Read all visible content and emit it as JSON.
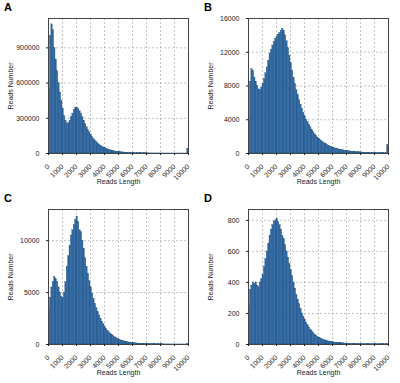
{
  "chart_data": [
    {
      "type": "histogram",
      "title": "A",
      "x_label": "Reads Length",
      "y_label": "Reads Number",
      "color": "#2d67a3",
      "grid": true,
      "bins": [
        0,
        100,
        200,
        300,
        400,
        500,
        600,
        700,
        800,
        900,
        1000,
        1100,
        1200,
        1300,
        1400,
        1500,
        1600,
        1700,
        1800,
        1900,
        2000,
        2100,
        2200,
        2300,
        2400,
        2500,
        2600,
        2700,
        2800,
        2900,
        3000,
        3100,
        3200,
        3300,
        3400,
        3500,
        3600,
        3700,
        3800,
        3900,
        4000,
        4100,
        4200,
        4300,
        4400,
        4500,
        4600,
        4700,
        4800,
        4900,
        5000,
        5100,
        5200,
        5300,
        5400,
        5500,
        5600,
        5700,
        5800,
        5900,
        6000,
        6100,
        6200,
        6300,
        6400,
        6500,
        6600,
        6700,
        6800,
        6900,
        7000,
        7100,
        7200,
        7300,
        7400,
        7500,
        7600,
        7700,
        7800,
        7900,
        8000,
        8100,
        8200,
        8300,
        8400,
        8500,
        8600,
        8700,
        8800,
        8900,
        9000,
        9100,
        9200,
        9300,
        9400,
        9500,
        9600,
        9700,
        9800,
        9900,
        10000
      ],
      "counts": [
        550000,
        1000000,
        1100000,
        1050000,
        900000,
        800000,
        700000,
        600000,
        520000,
        450000,
        380000,
        320000,
        280000,
        250000,
        260000,
        280000,
        310000,
        340000,
        370000,
        390000,
        390000,
        380000,
        360000,
        340000,
        310000,
        280000,
        250000,
        225000,
        200000,
        180000,
        160000,
        140000,
        125000,
        110000,
        97000,
        85000,
        75000,
        66000,
        58000,
        51000,
        45000,
        40000,
        35000,
        31000,
        27000,
        24000,
        21000,
        18000,
        16000,
        14000,
        12000,
        11000,
        10000,
        9000,
        8000,
        7000,
        6300,
        5600,
        5000,
        4500,
        4000,
        3600,
        3200,
        2900,
        2600,
        2300,
        2100,
        1900,
        1700,
        1500,
        1400,
        1200,
        1100,
        1000,
        900,
        800,
        700,
        650,
        600,
        550,
        500,
        450,
        400,
        380,
        350,
        320,
        300,
        280,
        260,
        240,
        220,
        200,
        190,
        180,
        170,
        160,
        150,
        140,
        130,
        40000
      ],
      "xlim": [
        0,
        10000
      ],
      "xticks": [
        0,
        1000,
        2000,
        3000,
        4000,
        5000,
        6000,
        7000,
        8000,
        9000,
        10000
      ],
      "ylim": [
        0,
        1150000
      ],
      "yticks": [
        0,
        300000,
        600000,
        900000
      ]
    },
    {
      "type": "histogram",
      "title": "B",
      "x_label": "Reads Length",
      "y_label": "Reads Number",
      "color": "#2d67a3",
      "grid": true,
      "bins": [
        0,
        100,
        200,
        300,
        400,
        500,
        600,
        700,
        800,
        900,
        1000,
        1100,
        1200,
        1300,
        1400,
        1500,
        1600,
        1700,
        1800,
        1900,
        2000,
        2100,
        2200,
        2300,
        2400,
        2500,
        2600,
        2700,
        2800,
        2900,
        3000,
        3100,
        3200,
        3300,
        3400,
        3500,
        3600,
        3700,
        3800,
        3900,
        4000,
        4100,
        4200,
        4300,
        4400,
        4500,
        4600,
        4700,
        4800,
        4900,
        5000,
        5100,
        5200,
        5300,
        5400,
        5500,
        5600,
        5700,
        5800,
        5900,
        6000,
        6100,
        6200,
        6300,
        6400,
        6500,
        6600,
        6700,
        6800,
        6900,
        7000,
        7100,
        7200,
        7300,
        7400,
        7500,
        7600,
        7700,
        7800,
        7900,
        8000,
        8100,
        8200,
        8300,
        8400,
        8500,
        8600,
        8700,
        8800,
        8900,
        9000,
        9100,
        9200,
        9300,
        9400,
        9500,
        9600,
        9700,
        9800,
        9900,
        10000
      ],
      "counts": [
        4000,
        8500,
        10000,
        9800,
        9000,
        8500,
        8000,
        7600,
        7500,
        7800,
        8200,
        8800,
        9500,
        10200,
        11000,
        11800,
        12300,
        12800,
        13200,
        13600,
        13800,
        14100,
        14300,
        14500,
        14800,
        14500,
        14000,
        13300,
        12500,
        11600,
        10700,
        9800,
        9000,
        8200,
        7500,
        6900,
        6300,
        5800,
        5300,
        4800,
        4400,
        4000,
        3700,
        3400,
        3100,
        2800,
        2550,
        2300,
        2100,
        1900,
        1750,
        1600,
        1450,
        1320,
        1200,
        1100,
        1000,
        920,
        840,
        770,
        700,
        640,
        590,
        540,
        490,
        450,
        410,
        380,
        350,
        320,
        290,
        270,
        250,
        230,
        210,
        190,
        175,
        160,
        150,
        140,
        130,
        120,
        110,
        100,
        95,
        90,
        85,
        80,
        75,
        70,
        65,
        60,
        55,
        50,
        48,
        45,
        42,
        40,
        38,
        1000
      ],
      "xlim": [
        0,
        10000
      ],
      "xticks": [
        0,
        1000,
        2000,
        3000,
        4000,
        5000,
        6000,
        7000,
        8000,
        9000,
        10000
      ],
      "ylim": [
        0,
        16000
      ],
      "yticks": [
        0,
        4000,
        8000,
        12000,
        16000
      ]
    },
    {
      "type": "histogram",
      "title": "C",
      "x_label": "Reads Length",
      "y_label": "Reads Number",
      "color": "#2d67a3",
      "grid": true,
      "bins": [
        0,
        100,
        200,
        300,
        400,
        500,
        600,
        700,
        800,
        900,
        1000,
        1100,
        1200,
        1300,
        1400,
        1500,
        1600,
        1700,
        1800,
        1900,
        2000,
        2100,
        2200,
        2300,
        2400,
        2500,
        2600,
        2700,
        2800,
        2900,
        3000,
        3100,
        3200,
        3300,
        3400,
        3500,
        3600,
        3700,
        3800,
        3900,
        4000,
        4100,
        4200,
        4300,
        4400,
        4500,
        4600,
        4700,
        4800,
        4900,
        5000,
        5100,
        5200,
        5300,
        5400,
        5500,
        5600,
        5700,
        5800,
        5900,
        6000,
        6100,
        6200,
        6300,
        6400,
        6500,
        6600,
        6700,
        6800,
        6900,
        7000,
        7100,
        7200,
        7300,
        7400,
        7500,
        7600,
        7700,
        7800,
        7900,
        8000,
        8100,
        8200,
        8300,
        8400,
        8500,
        8600,
        8700,
        8800,
        8900,
        9000,
        9100,
        9200,
        9300,
        9400,
        9500,
        9600,
        9700,
        9800,
        9900,
        10000
      ],
      "counts": [
        3500,
        4500,
        5500,
        6000,
        6500,
        6300,
        6000,
        5500,
        5000,
        4600,
        4500,
        5000,
        6000,
        7500,
        8500,
        9500,
        10500,
        11000,
        11500,
        12000,
        12300,
        11800,
        11000,
        10800,
        10000,
        9200,
        8300,
        7500,
        6800,
        6100,
        5500,
        4900,
        4400,
        3900,
        3500,
        3100,
        2800,
        2500,
        2200,
        1950,
        1700,
        1500,
        1330,
        1170,
        1030,
        900,
        800,
        700,
        620,
        550,
        480,
        420,
        370,
        330,
        290,
        260,
        230,
        200,
        180,
        160,
        140,
        125,
        110,
        100,
        90,
        80,
        72,
        65,
        58,
        52,
        47,
        42,
        38,
        34,
        30,
        27,
        24,
        22,
        20,
        18,
        16,
        15,
        14,
        13,
        12,
        11,
        10,
        9,
        8,
        8,
        7,
        7,
        6,
        6,
        5,
        5,
        5,
        4,
        4,
        60
      ],
      "xlim": [
        0,
        10000
      ],
      "xticks": [
        0,
        1000,
        2000,
        3000,
        4000,
        5000,
        6000,
        7000,
        8000,
        9000,
        10000
      ],
      "ylim": [
        0,
        13000
      ],
      "yticks": [
        0,
        5000,
        10000
      ]
    },
    {
      "type": "histogram",
      "title": "D",
      "x_label": "Reads Length",
      "y_label": "Reads Number",
      "color": "#2d67a3",
      "grid": true,
      "bins": [
        0,
        100,
        200,
        300,
        400,
        500,
        600,
        700,
        800,
        900,
        1000,
        1100,
        1200,
        1300,
        1400,
        1500,
        1600,
        1700,
        1800,
        1900,
        2000,
        2100,
        2200,
        2300,
        2400,
        2500,
        2600,
        2700,
        2800,
        2900,
        3000,
        3100,
        3200,
        3300,
        3400,
        3500,
        3600,
        3700,
        3800,
        3900,
        4000,
        4100,
        4200,
        4300,
        4400,
        4500,
        4600,
        4700,
        4800,
        4900,
        5000,
        5100,
        5200,
        5300,
        5400,
        5500,
        5600,
        5700,
        5800,
        5900,
        6000,
        6100,
        6200,
        6300,
        6400,
        6500,
        6600,
        6700,
        6800,
        6900,
        7000,
        7100,
        7200,
        7300,
        7400,
        7500,
        7600,
        7700,
        7800,
        7900,
        8000,
        8100,
        8200,
        8300,
        8400,
        8500,
        8600,
        8700,
        8800,
        8900,
        9000,
        9100,
        9200,
        9300,
        9400,
        9500,
        9600,
        9700,
        9800,
        9900,
        10000
      ],
      "counts": [
        250,
        350,
        380,
        400,
        390,
        400,
        380,
        370,
        400,
        420,
        450,
        500,
        550,
        600,
        650,
        700,
        740,
        770,
        790,
        800,
        810,
        790,
        770,
        740,
        700,
        680,
        640,
        600,
        560,
        520,
        480,
        440,
        400,
        360,
        320,
        290,
        260,
        230,
        200,
        180,
        160,
        140,
        125,
        110,
        95,
        85,
        75,
        65,
        58,
        50,
        44,
        40,
        35,
        31,
        27,
        24,
        22,
        20,
        18,
        16,
        14,
        13,
        12,
        11,
        10,
        9,
        8,
        8,
        7,
        6,
        6,
        5,
        5,
        4,
        4,
        4,
        3,
        3,
        3,
        2,
        2,
        2,
        2,
        2,
        2,
        1,
        1,
        1,
        1,
        1,
        1,
        1,
        1,
        1,
        1,
        1,
        1,
        1,
        1,
        4
      ],
      "xlim": [
        0,
        10000
      ],
      "xticks": [
        0,
        1000,
        2000,
        3000,
        4000,
        5000,
        6000,
        7000,
        8000,
        9000,
        10000
      ],
      "ylim": [
        0,
        870
      ],
      "yticks": [
        0,
        200,
        400,
        600,
        800
      ]
    }
  ]
}
